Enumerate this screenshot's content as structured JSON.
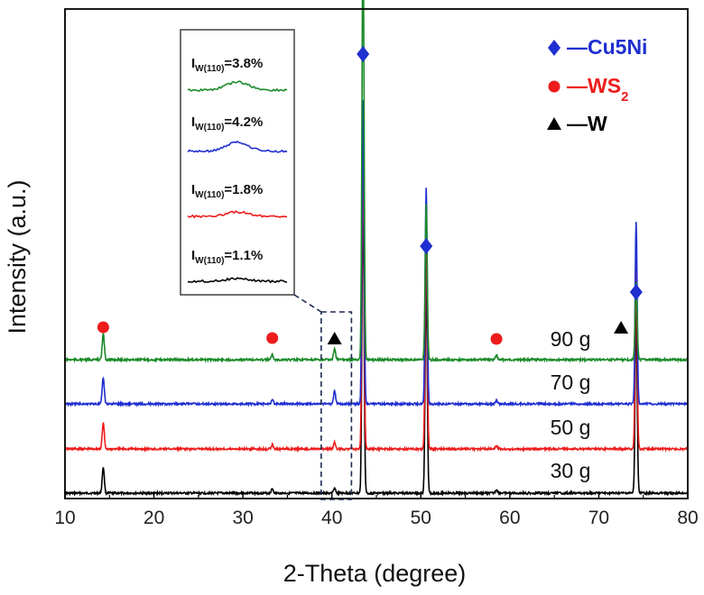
{
  "chart_data": {
    "type": "line",
    "title": "",
    "xlabel": "2-Theta (degree)",
    "ylabel": "Intensity (a.u.)",
    "xlim": [
      10,
      80
    ],
    "x_ticks": [
      "10",
      "20",
      "30",
      "40",
      "50",
      "60",
      "70",
      "80"
    ],
    "grid": false,
    "series": [
      {
        "name": "30 g",
        "color": "#000000",
        "peaks": [
          {
            "x": 14.3,
            "height": 0.06
          },
          {
            "x": 33.3,
            "height": 0.01
          },
          {
            "x": 40.3,
            "height": 0.012
          },
          {
            "x": 43.5,
            "height": 0.7
          },
          {
            "x": 50.6,
            "height": 0.5
          },
          {
            "x": 58.5,
            "height": 0.008
          },
          {
            "x": 74.2,
            "height": 0.42
          }
        ]
      },
      {
        "name": "50 g",
        "color": "#ee1c1c",
        "peaks": [
          {
            "x": 14.3,
            "height": 0.06
          },
          {
            "x": 33.3,
            "height": 0.01
          },
          {
            "x": 40.3,
            "height": 0.016
          },
          {
            "x": 43.5,
            "height": 0.7
          },
          {
            "x": 50.6,
            "height": 0.5
          },
          {
            "x": 58.5,
            "height": 0.008
          },
          {
            "x": 74.2,
            "height": 0.42
          }
        ]
      },
      {
        "name": "70 g",
        "color": "#1f2fd0",
        "peaks": [
          {
            "x": 14.3,
            "height": 0.06
          },
          {
            "x": 33.3,
            "height": 0.01
          },
          {
            "x": 40.3,
            "height": 0.03
          },
          {
            "x": 43.5,
            "height": 0.7
          },
          {
            "x": 50.6,
            "height": 0.5
          },
          {
            "x": 58.5,
            "height": 0.008
          },
          {
            "x": 74.2,
            "height": 0.42
          }
        ]
      },
      {
        "name": "90 g",
        "color": "#1a8a28",
        "peaks": [
          {
            "x": 14.3,
            "height": 0.06
          },
          {
            "x": 33.3,
            "height": 0.012
          },
          {
            "x": 40.3,
            "height": 0.026
          },
          {
            "x": 43.5,
            "height": 1.0
          },
          {
            "x": 50.6,
            "height": 0.36
          },
          {
            "x": 58.5,
            "height": 0.01
          },
          {
            "x": 74.2,
            "height": 0.18
          }
        ]
      }
    ],
    "markers": [
      {
        "phase": "WS2",
        "symbol": "circle",
        "color": "#ee1c1c",
        "x": [
          14.3,
          33.3,
          58.5
        ]
      },
      {
        "phase": "W",
        "symbol": "triangle",
        "color": "#000000",
        "x": [
          40.3,
          72.5
        ]
      },
      {
        "phase": "Cu5Ni",
        "symbol": "diamond",
        "color": "#1f2fd0",
        "x": [
          43.5,
          50.6,
          74.2
        ]
      }
    ],
    "legend": {
      "position": "top-right",
      "entries": [
        {
          "prefix": "—",
          "text": "Cu5Ni",
          "sub": "",
          "symbol": "diamond",
          "color": "#1f2fd0"
        },
        {
          "prefix": "—",
          "text": "WS",
          "sub": "2",
          "symbol": "circle",
          "color": "#ee1c1c"
        },
        {
          "prefix": "—",
          "text": "W",
          "sub": "",
          "symbol": "triangle",
          "color": "#000000"
        }
      ]
    },
    "inset": {
      "position": "top-left",
      "highlight_x_range": [
        38.8,
        42.2
      ],
      "items": [
        {
          "label": "I",
          "sub": "W(110)",
          "value": "=3.8%",
          "color": "#1a8a28"
        },
        {
          "label": "I",
          "sub": "W(110)",
          "value": "=4.2%",
          "color": "#1f2fd0"
        },
        {
          "label": "I",
          "sub": "W(110)",
          "value": "=1.8%",
          "color": "#ee1c1c"
        },
        {
          "label": "I",
          "sub": "W(110)",
          "value": "=1.1%",
          "color": "#000000"
        }
      ]
    }
  }
}
